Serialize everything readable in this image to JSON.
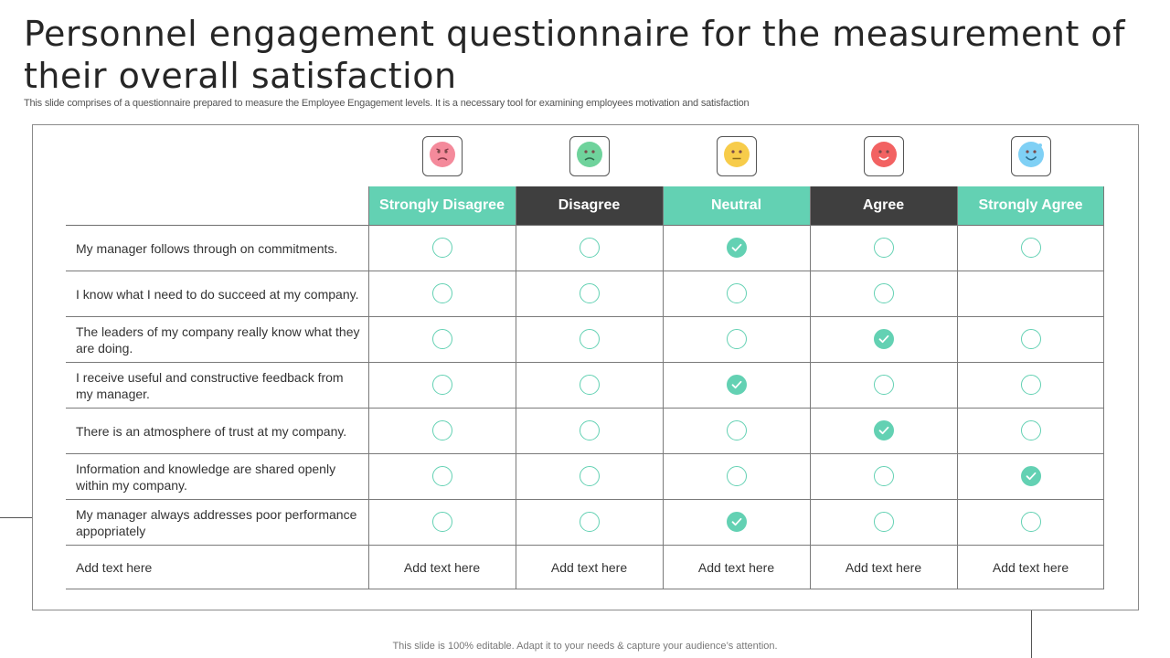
{
  "title": "Personnel engagement questionnaire for the measurement of their overall satisfaction",
  "subtitle": "This slide comprises of a questionnaire prepared to measure the Employee Engagement levels. It is a necessary tool for examining employees motivation and satisfaction",
  "footer": "This slide is 100% editable. Adapt it to your needs & capture your audience’s attention.",
  "colors": {
    "accent": "#63d1b3",
    "dark_header": "#3f3f3f"
  },
  "columns": [
    {
      "label": "Strongly Disagree",
      "style": "teal",
      "icon": "angry-face-icon",
      "icon_color": "#f48a9b"
    },
    {
      "label": "Disagree",
      "style": "dark",
      "icon": "sad-face-icon",
      "icon_color": "#6fd39c"
    },
    {
      "label": "Neutral",
      "style": "teal",
      "icon": "neutral-face-icon",
      "icon_color": "#f7cc4a"
    },
    {
      "label": "Agree",
      "style": "dark",
      "icon": "smile-face-icon",
      "icon_color": "#f26262"
    },
    {
      "label": "Strongly Agree",
      "style": "teal",
      "icon": "happy-face-icon",
      "icon_color": "#7fd0f5"
    }
  ],
  "rows": [
    {
      "question": "My manager follows through on commitments.",
      "answers": [
        "empty",
        "empty",
        "checked",
        "empty",
        "empty"
      ]
    },
    {
      "question": "I know what I need to do succeed at my company.",
      "answers": [
        "empty",
        "empty",
        "empty",
        "empty",
        "none"
      ]
    },
    {
      "question": "The leaders of my company really know what they are doing.",
      "answers": [
        "empty",
        "empty",
        "empty",
        "checked",
        "empty"
      ]
    },
    {
      "question": "I receive useful and constructive feedback from my manager.",
      "answers": [
        "empty",
        "empty",
        "checked",
        "empty",
        "empty"
      ]
    },
    {
      "question": "There is an atmosphere of trust at my company.",
      "answers": [
        "empty",
        "empty",
        "empty",
        "checked",
        "empty"
      ]
    },
    {
      "question": "Information and knowledge are shared openly within my company.",
      "answers": [
        "empty",
        "empty",
        "empty",
        "empty",
        "checked"
      ]
    },
    {
      "question": "My manager always addresses poor performance appopriately",
      "answers": [
        "empty",
        "empty",
        "checked",
        "empty",
        "empty"
      ]
    }
  ],
  "last_row": {
    "label": "Add text here",
    "cells": [
      "Add text here",
      "Add text here",
      "Add text here",
      "Add text here",
      "Add text here"
    ]
  }
}
